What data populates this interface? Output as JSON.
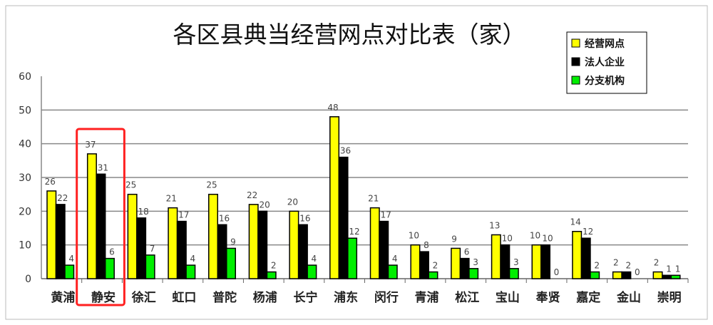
{
  "chart_data": {
    "type": "bar",
    "title": "各区县典当经营网点对比表（家）",
    "categories": [
      "黄浦",
      "静安",
      "徐汇",
      "虹口",
      "普陀",
      "杨浦",
      "长宁",
      "浦东",
      "闵行",
      "青浦",
      "松江",
      "宝山",
      "奉贤",
      "嘉定",
      "金山",
      "崇明"
    ],
    "series": [
      {
        "name": "经营网点",
        "color": "#ffff00",
        "values": [
          26,
          37,
          25,
          21,
          25,
          22,
          20,
          48,
          21,
          10,
          9,
          13,
          10,
          14,
          2,
          2
        ]
      },
      {
        "name": "法人企业",
        "color": "#000000",
        "values": [
          22,
          31,
          18,
          17,
          16,
          20,
          16,
          36,
          17,
          8,
          6,
          10,
          10,
          12,
          2,
          1
        ]
      },
      {
        "name": "分支机构",
        "color": "#00ee00",
        "values": [
          4,
          6,
          7,
          4,
          9,
          2,
          4,
          12,
          4,
          2,
          3,
          3,
          0,
          2,
          0,
          1
        ]
      }
    ],
    "ylim": [
      0,
      60
    ],
    "yticks": [
      0,
      10,
      20,
      30,
      40,
      50,
      60
    ],
    "grid": true,
    "legend": "top-right",
    "highlight": {
      "category": "静安",
      "color": "#ff2020"
    }
  }
}
